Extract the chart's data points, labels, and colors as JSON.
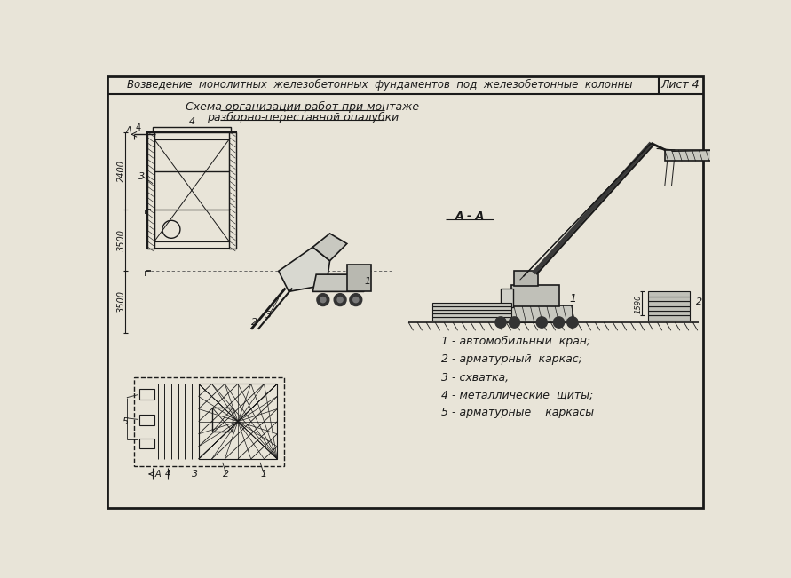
{
  "title_main": "Возведение  монолитных  железобетонных  фундаментов  под  железобетонные  колонны",
  "title_sheet": "Лист 4",
  "subtitle_line1": "Схема организации работ при монтаже",
  "subtitle_line2": "разборно-переставной опалубки",
  "legend": [
    "1 - автомобильный  кран;",
    "2 - арматурный  каркас;",
    "3 - схватка;",
    "4 - металлические  щиты;",
    "5 - арматурные    каркасы"
  ],
  "bg_color": "#e8e4d8",
  "line_color": "#1a1a1a",
  "title_font_size": 8.5,
  "subtitle_font_size": 9,
  "legend_font_size": 9
}
